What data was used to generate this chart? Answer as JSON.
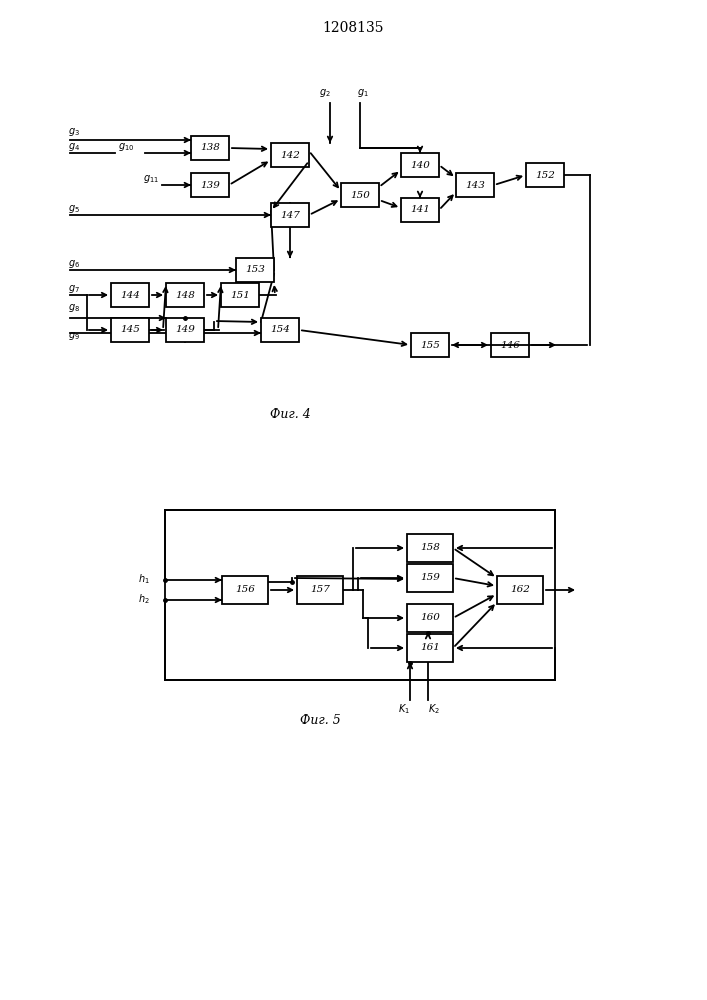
{
  "title": "1208135",
  "fig4_caption": "Фиг. 4",
  "fig5_caption": "Фиг. 5",
  "bg_color": "#ffffff",
  "lc": "#000000"
}
